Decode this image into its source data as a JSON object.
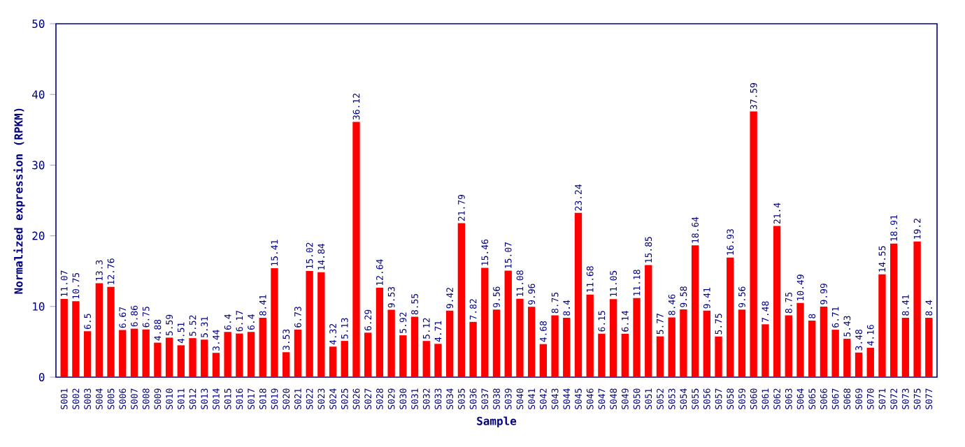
{
  "chart_data": {
    "type": "bar",
    "xlabel": "Sample",
    "ylabel": "Normalized expression (RPKM)",
    "categories": [
      "S001",
      "S002",
      "S003",
      "S004",
      "S005",
      "S006",
      "S007",
      "S008",
      "S009",
      "S010",
      "S011",
      "S012",
      "S013",
      "S014",
      "S015",
      "S016",
      "S017",
      "S018",
      "S019",
      "S020",
      "S021",
      "S022",
      "S023",
      "S024",
      "S025",
      "S026",
      "S027",
      "S028",
      "S029",
      "S030",
      "S031",
      "S032",
      "S033",
      "S034",
      "S035",
      "S036",
      "S037",
      "S038",
      "S039",
      "S040",
      "S041",
      "S042",
      "S043",
      "S044",
      "S045",
      "S046",
      "S047",
      "S048",
      "S049",
      "S050",
      "S051",
      "S052",
      "S053",
      "S054",
      "S055",
      "S056",
      "S057",
      "S058",
      "S059",
      "S060",
      "S061",
      "S062",
      "S063",
      "S064",
      "S065",
      "S066",
      "S067",
      "S068",
      "S069",
      "S070",
      "S071",
      "S072",
      "S073",
      "S075",
      "S077"
    ],
    "values": [
      11.07,
      10.75,
      6.5,
      13.3,
      12.76,
      6.67,
      6.86,
      6.75,
      4.88,
      5.59,
      4.51,
      5.52,
      5.31,
      3.44,
      6.4,
      6.17,
      6.4,
      8.41,
      15.41,
      3.53,
      6.73,
      15.02,
      14.84,
      4.32,
      5.13,
      36.12,
      6.29,
      12.64,
      9.53,
      5.92,
      8.55,
      5.12,
      4.71,
      9.42,
      21.79,
      7.82,
      15.46,
      9.56,
      15.07,
      11.08,
      9.96,
      4.68,
      8.75,
      8.4,
      23.24,
      11.68,
      6.15,
      11.05,
      6.14,
      11.18,
      15.85,
      5.77,
      8.46,
      9.58,
      18.64,
      9.41,
      5.75,
      16.93,
      9.56,
      37.59,
      7.48,
      21.4,
      8.75,
      10.49,
      8,
      9.99,
      6.71,
      5.43,
      3.48,
      4.16,
      14.55,
      18.91,
      8.41,
      19.2,
      8.4
    ],
    "color": "#ff0000",
    "data_labels": true,
    "ylim": [
      0,
      50
    ],
    "yticks": [
      0,
      10,
      20,
      30,
      40,
      50
    ],
    "grid": false
  }
}
